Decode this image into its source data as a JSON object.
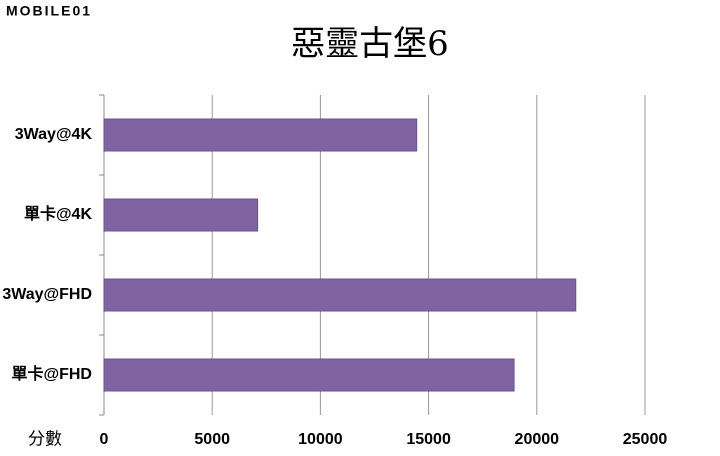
{
  "watermark": "MOBILE01",
  "chart_data": {
    "type": "bar",
    "orientation": "horizontal",
    "title": "惡靈古堡6",
    "xlabel": "分數",
    "categories": [
      "3Way@4K",
      "單卡@4K",
      "3Way@FHD",
      "單卡@FHD"
    ],
    "values": [
      14450,
      7100,
      21800,
      18950
    ],
    "color": "#8064a2",
    "xlim": [
      0,
      25000
    ],
    "xticks": [
      0,
      5000,
      10000,
      15000,
      20000,
      25000
    ],
    "grid": true
  }
}
